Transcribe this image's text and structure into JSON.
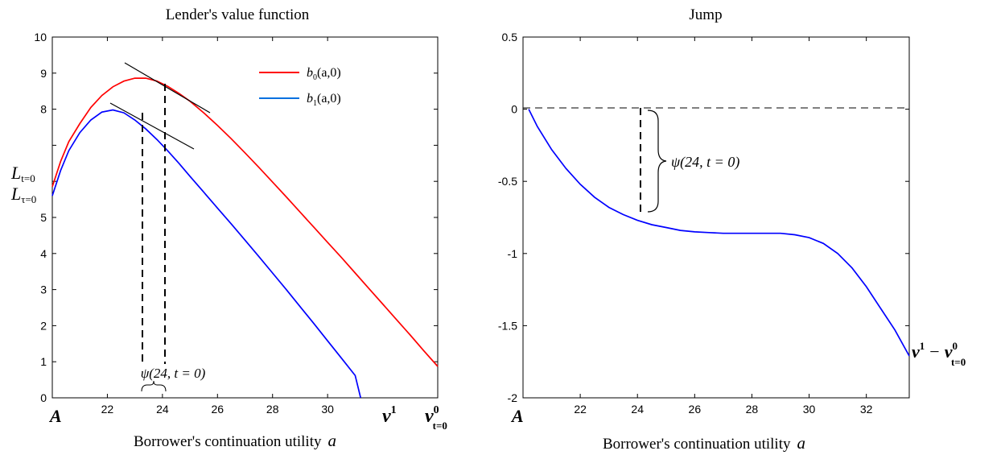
{
  "chart_data": [
    {
      "type": "line",
      "title": "Lender's value function",
      "xlabel": "Borrower's continuation utility",
      "xlabel_symbol": "a",
      "ylabel": "",
      "xlim": [
        20.0,
        34.0
      ],
      "ylim": [
        0,
        10
      ],
      "xticks": [
        22,
        24,
        26,
        28,
        30
      ],
      "yticks": [
        0,
        1,
        2,
        3,
        4,
        5,
        8,
        9,
        10
      ],
      "grid": false,
      "legend_position": "top-right",
      "special_x_labels": {
        "A": "A",
        "v1": "v",
        "v1_sup": "1",
        "v0": "v",
        "v0_sup": "0",
        "v0_sub": "t=0"
      },
      "special_y_labels": {
        "Lt": "L",
        "Lt_sub": "t=0",
        "Ltau": "L",
        "Ltau_sub": "τ=0"
      },
      "annotation": "ψ(24, t = 0)",
      "series": [
        {
          "name": "b0(a,0)",
          "legend_main": "b",
          "legend_sub": "0",
          "legend_args": "(a,0)",
          "color": "#ff0000",
          "x": [
            20.0,
            20.3,
            20.6,
            21.0,
            21.4,
            21.8,
            22.2,
            22.6,
            23.0,
            23.4,
            23.8,
            24.2,
            24.6,
            25.0,
            25.5,
            26.0,
            26.5,
            27.0,
            27.5,
            28.0,
            28.5,
            29.0,
            29.5,
            30.0,
            30.5,
            31.0,
            31.5,
            32.0,
            32.5,
            33.0,
            33.5,
            34.0
          ],
          "y": [
            5.85,
            6.55,
            7.1,
            7.6,
            8.05,
            8.38,
            8.62,
            8.78,
            8.86,
            8.86,
            8.78,
            8.63,
            8.44,
            8.22,
            7.9,
            7.55,
            7.18,
            6.79,
            6.39,
            5.98,
            5.57,
            5.15,
            4.73,
            4.31,
            3.89,
            3.46,
            3.03,
            2.6,
            2.17,
            1.74,
            1.3,
            0.87
          ]
        },
        {
          "name": "b1(a,0)",
          "legend_main": "b",
          "legend_sub": "1",
          "legend_args": "(a,0)",
          "color": "#0000ff",
          "x": [
            20.0,
            20.3,
            20.6,
            21.0,
            21.4,
            21.8,
            22.2,
            22.6,
            23.0,
            23.4,
            23.8,
            24.2,
            24.6,
            25.0,
            25.5,
            26.0,
            26.5,
            27.0,
            27.5,
            28.0,
            28.5,
            29.0,
            29.5,
            30.0,
            30.5,
            31.0,
            31.2
          ],
          "y": [
            5.6,
            6.3,
            6.85,
            7.35,
            7.7,
            7.92,
            7.98,
            7.9,
            7.7,
            7.45,
            7.16,
            6.84,
            6.5,
            6.14,
            5.7,
            5.26,
            4.82,
            4.37,
            3.92,
            3.46,
            3.0,
            2.53,
            2.06,
            1.58,
            1.1,
            0.62,
            0.0
          ]
        }
      ]
    },
    {
      "type": "line",
      "title": "Jump",
      "xlabel": "Borrower's continuation utility",
      "xlabel_symbol": "a",
      "ylabel": "",
      "xlim": [
        20.0,
        33.5
      ],
      "ylim": [
        -2,
        0.5
      ],
      "xticks": [
        22,
        24,
        26,
        28,
        30,
        32
      ],
      "yticks": [
        -2,
        -1.5,
        -1,
        -0.5,
        0,
        0.5
      ],
      "grid": false,
      "special_x_labels": {
        "A": "A"
      },
      "annotation": "ψ(24, t = 0)",
      "end_label": {
        "v": "v",
        "sup1": "1",
        "minus": "−",
        "v2": "v",
        "sup0": "0",
        "sub": "t=0"
      },
      "series": [
        {
          "name": "",
          "color": "#0000ff",
          "x": [
            20.2,
            20.5,
            21.0,
            21.5,
            22.0,
            22.5,
            23.0,
            23.5,
            24.0,
            24.5,
            25.0,
            25.5,
            26.0,
            26.5,
            27.0,
            27.5,
            28.0,
            28.5,
            29.0,
            29.5,
            30.0,
            30.5,
            31.0,
            31.5,
            32.0,
            32.5,
            33.0,
            33.5
          ],
          "y": [
            0.0,
            -0.12,
            -0.28,
            -0.41,
            -0.52,
            -0.61,
            -0.68,
            -0.73,
            -0.77,
            -0.8,
            -0.82,
            -0.84,
            -0.85,
            -0.855,
            -0.86,
            -0.86,
            -0.86,
            -0.86,
            -0.86,
            -0.87,
            -0.89,
            -0.93,
            -1.0,
            -1.1,
            -1.23,
            -1.38,
            -1.53,
            -1.71
          ]
        }
      ]
    }
  ]
}
